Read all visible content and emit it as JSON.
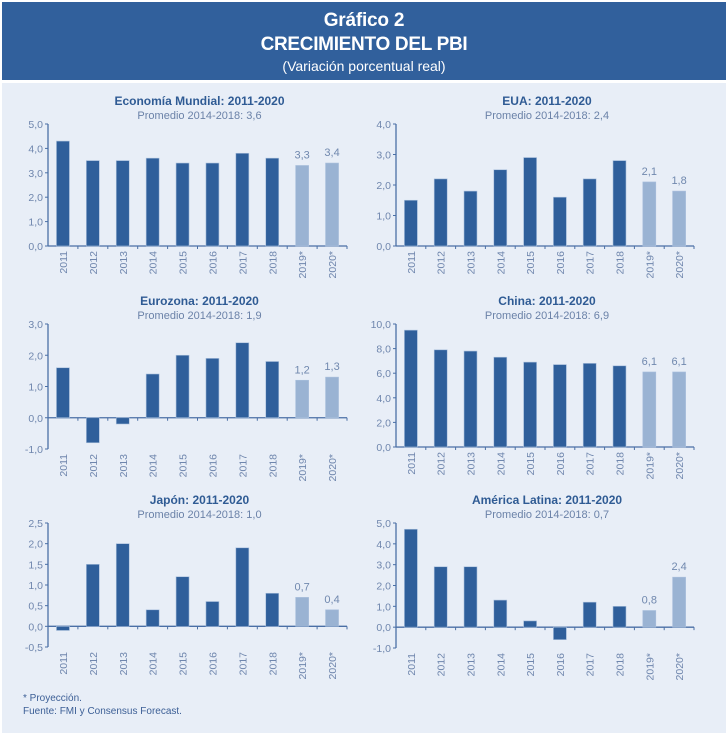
{
  "header": {
    "title": "Gráfico 2",
    "subtitle": "CRECIMIENTO DEL PBI",
    "note": "(Variación porcentual real)"
  },
  "colors": {
    "header_bg": "#31609c",
    "panel_bg": "#e8eef7",
    "bar_actual": "#2f5f9b",
    "bar_projection": "#9ab3d3",
    "axis": "#4a6fa6"
  },
  "footer": {
    "note": "* Proyección.",
    "source": "Fuente: FMI y Consensus Forecast."
  },
  "chart_data": [
    {
      "type": "bar",
      "title": "Economía Mundial: 2011-2020",
      "subtitle": "Promedio 2014-2018: 3,6",
      "categories": [
        "2011",
        "2012",
        "2013",
        "2014",
        "2015",
        "2016",
        "2017",
        "2018",
        "2019*",
        "2020*"
      ],
      "values": [
        4.3,
        3.5,
        3.5,
        3.6,
        3.4,
        3.4,
        3.8,
        3.6,
        3.3,
        3.4
      ],
      "projected": [
        false,
        false,
        false,
        false,
        false,
        false,
        false,
        false,
        true,
        true
      ],
      "data_labels": {
        "8": "3,3",
        "9": "3,4"
      },
      "yticks": [
        "5,0",
        "4,0",
        "3,0",
        "2,0",
        "1,0",
        "0,0"
      ],
      "ylim": [
        0,
        5
      ],
      "xlabel": "",
      "ylabel": "",
      "grid": false
    },
    {
      "type": "bar",
      "title": "EUA: 2011-2020",
      "subtitle": "Promedio 2014-2018: 2,4",
      "categories": [
        "2011",
        "2012",
        "2013",
        "2014",
        "2015",
        "2016",
        "2017",
        "2018",
        "2019*",
        "2020*"
      ],
      "values": [
        1.5,
        2.2,
        1.8,
        2.5,
        2.9,
        1.6,
        2.2,
        2.8,
        2.1,
        1.8
      ],
      "projected": [
        false,
        false,
        false,
        false,
        false,
        false,
        false,
        false,
        true,
        true
      ],
      "data_labels": {
        "8": "2,1",
        "9": "1,8"
      },
      "yticks": [
        "4,0",
        "3,0",
        "2,0",
        "1,0",
        "0,0"
      ],
      "ylim": [
        0,
        4
      ],
      "xlabel": "",
      "ylabel": "",
      "grid": false
    },
    {
      "type": "bar",
      "title": "Eurozona: 2011-2020",
      "subtitle": "Promedio 2014-2018: 1,9",
      "categories": [
        "2011",
        "2012",
        "2013",
        "2014",
        "2015",
        "2016",
        "2017",
        "2018",
        "2019*",
        "2020*"
      ],
      "values": [
        1.6,
        -0.8,
        -0.2,
        1.4,
        2.0,
        1.9,
        2.4,
        1.8,
        1.2,
        1.3
      ],
      "projected": [
        false,
        false,
        false,
        false,
        false,
        false,
        false,
        false,
        true,
        true
      ],
      "data_labels": {
        "8": "1,2",
        "9": "1,3"
      },
      "yticks": [
        "3,0",
        "2,0",
        "1,0",
        "0,0",
        "-1,0"
      ],
      "ylim": [
        -1,
        3
      ],
      "xlabel": "",
      "ylabel": "",
      "grid": false
    },
    {
      "type": "bar",
      "title": "China: 2011-2020",
      "subtitle": "Promedio 2014-2018: 6,9",
      "categories": [
        "2011",
        "2012",
        "2013",
        "2014",
        "2015",
        "2016",
        "2017",
        "2018",
        "2019*",
        "2020*"
      ],
      "values": [
        9.5,
        7.9,
        7.8,
        7.3,
        6.9,
        6.7,
        6.8,
        6.6,
        6.1,
        6.1
      ],
      "projected": [
        false,
        false,
        false,
        false,
        false,
        false,
        false,
        false,
        true,
        true
      ],
      "data_labels": {
        "8": "6,1",
        "9": "6,1"
      },
      "yticks": [
        "10,0",
        "8,0",
        "6,0",
        "4,0",
        "2,0",
        "0,0"
      ],
      "ylim": [
        0,
        10
      ],
      "xlabel": "",
      "ylabel": "",
      "grid": false
    },
    {
      "type": "bar",
      "title": "Japón: 2011-2020",
      "subtitle": "Promedio 2014-2018: 1,0",
      "categories": [
        "2011",
        "2012",
        "2013",
        "2014",
        "2015",
        "2016",
        "2017",
        "2018",
        "2019*",
        "2020*"
      ],
      "values": [
        -0.1,
        1.5,
        2.0,
        0.4,
        1.2,
        0.6,
        1.9,
        0.8,
        0.7,
        0.4
      ],
      "projected": [
        false,
        false,
        false,
        false,
        false,
        false,
        false,
        false,
        true,
        true
      ],
      "data_labels": {
        "8": "0,7",
        "9": "0,4"
      },
      "yticks": [
        "2,5",
        "2,0",
        "1,5",
        "1,0",
        "0,5",
        "0,0",
        "-0,5"
      ],
      "ylim": [
        -0.5,
        2.5
      ],
      "xlabel": "",
      "ylabel": "",
      "grid": false
    },
    {
      "type": "bar",
      "title": "América Latina: 2011-2020",
      "subtitle": "Promedio 2014-2018: 0,7",
      "categories": [
        "2011",
        "2012",
        "2013",
        "2014",
        "2015",
        "2016",
        "2017",
        "2018",
        "2019*",
        "2020*"
      ],
      "values": [
        4.7,
        2.9,
        2.9,
        1.3,
        0.3,
        -0.6,
        1.2,
        1.0,
        0.8,
        2.4
      ],
      "projected": [
        false,
        false,
        false,
        false,
        false,
        false,
        false,
        false,
        true,
        true
      ],
      "data_labels": {
        "8": "0,8",
        "9": "2,4"
      },
      "yticks": [
        "5,0",
        "4,0",
        "3,0",
        "2,0",
        "1,0",
        "0,0",
        "-1,0"
      ],
      "ylim": [
        -1,
        5
      ],
      "xlabel": "",
      "ylabel": "",
      "grid": false
    }
  ]
}
